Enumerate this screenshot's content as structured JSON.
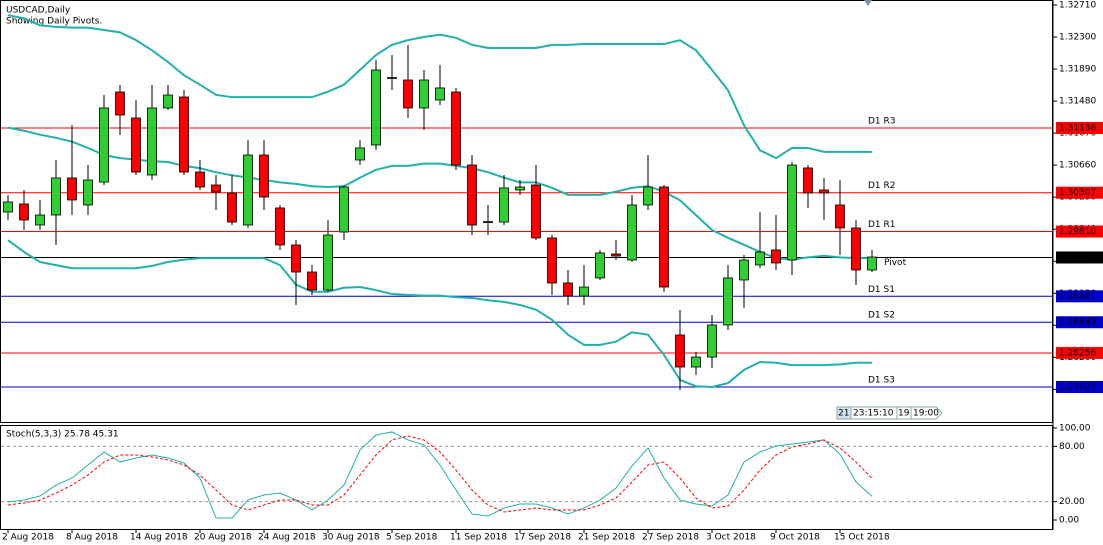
{
  "chart_data": [
    {
      "type": "candlestick",
      "title": "USDCAD,Daily",
      "subtitle": "Showing Daily Pivots.",
      "categories": [
        "2 Aug 2018",
        null,
        null,
        null,
        "8 Aug 2018",
        null,
        null,
        null,
        "14 Aug 2018",
        null,
        null,
        null,
        "20 Aug 2018",
        null,
        null,
        null,
        "24 Aug 2018",
        null,
        null,
        null,
        "30 Aug 2018",
        null,
        null,
        null,
        "5 Sep 2018",
        null,
        null,
        null,
        "11 Sep 2018",
        null,
        null,
        null,
        "17 Sep 2018",
        null,
        null,
        null,
        "21 Sep 2018",
        null,
        null,
        null,
        "27 Sep 2018",
        null,
        null,
        null,
        "3 Oct 2018",
        null,
        null,
        null,
        "9 Oct 2018",
        null,
        null,
        null,
        "15 Oct 2018",
        null,
        null
      ],
      "open": [
        1.3006,
        1.30163,
        1.29894,
        1.30022,
        1.30496,
        1.3015,
        1.30444,
        1.31596,
        1.31264,
        1.30534,
        1.31392,
        1.31532,
        1.30572,
        1.30406,
        1.30304,
        1.29894,
        1.3079,
        1.30112,
        1.29638,
        1.29292,
        1.29062,
        1.29804,
        1.30726,
        1.30918,
        1.31776,
        1.3175,
        1.31392,
        1.31494,
        1.31596,
        1.30662,
        1.29932,
        1.29932,
        1.30342,
        1.30406,
        1.29728,
        1.29152,
        1.28985,
        1.29216,
        1.29523,
        1.29446,
        1.3015,
        1.3038,
        1.28486,
        1.28076,
        1.28204,
        1.28614,
        1.2919,
        1.29382,
        1.29574,
        1.29446,
        1.30624,
        1.30342,
        1.3015,
        1.29856,
        1.29318
      ],
      "high": [
        1.30278,
        1.30342,
        1.30214,
        1.30726,
        1.31174,
        1.30662,
        1.31558,
        1.31686,
        1.31494,
        1.31686,
        1.31686,
        1.31622,
        1.30726,
        1.30534,
        1.30534,
        1.30982,
        1.30982,
        1.3015,
        1.29702,
        1.29382,
        1.29958,
        1.30406,
        1.30982,
        1.32006,
        1.3207,
        1.32198,
        1.31878,
        1.31942,
        1.31648,
        1.3079,
        1.3015,
        1.30534,
        1.3047,
        1.30662,
        1.29766,
        1.29318,
        1.29382,
        1.29574,
        1.29702,
        1.30278,
        1.3079,
        1.30406,
        1.28806,
        1.28268,
        1.28742,
        1.29382,
        1.2951,
        1.3006,
        1.30022,
        1.307,
        1.30662,
        1.30496,
        1.3047,
        1.29958,
        1.29574
      ],
      "low": [
        1.29958,
        1.2983,
        1.2983,
        1.29638,
        1.30022,
        1.30022,
        1.30406,
        1.31046,
        1.30534,
        1.3047,
        1.31366,
        1.30534,
        1.30342,
        1.30086,
        1.29894,
        1.29856,
        1.30086,
        1.29574,
        1.2887,
        1.28998,
        1.29036,
        1.29702,
        1.30662,
        1.30854,
        1.31622,
        1.31264,
        1.3111,
        1.3143,
        1.30598,
        1.29766,
        1.29766,
        1.29894,
        1.30278,
        1.29702,
        1.28998,
        1.2887,
        1.2887,
        1.2919,
        1.29446,
        1.2942,
        1.30086,
        1.29036,
        1.27782,
        1.27974,
        1.28064,
        1.2855,
        1.28832,
        1.29344,
        1.29318,
        1.29254,
        1.30112,
        1.29958,
        1.2951,
        1.29126,
        1.29292
      ],
      "close": [
        1.30188,
        1.29958,
        1.30022,
        1.30496,
        1.30214,
        1.3047,
        1.31392,
        1.31302,
        1.30572,
        1.31392,
        1.31558,
        1.30572,
        1.3038,
        1.30316,
        1.29932,
        1.3079,
        1.30252,
        1.29638,
        1.29292,
        1.29062,
        1.29766,
        1.3038,
        1.3088,
        1.31878,
        1.31782,
        1.31392,
        1.3175,
        1.31648,
        1.30662,
        1.29894,
        1.29938,
        1.30368,
        1.3038,
        1.29728,
        1.29152,
        1.28985,
        1.291,
        1.29536,
        1.29497,
        1.3015,
        1.3038,
        1.291,
        1.28076,
        1.28204,
        1.28614,
        1.29216,
        1.29446,
        1.29548,
        1.29408,
        1.30662,
        1.30304,
        1.30304,
        1.29856,
        1.29318,
        1.29484
      ],
      "up_color": "#32cd32",
      "down_color": "#ff0000",
      "bands": [
        {
          "color": "#20b2aa",
          "values": [
            1.3258,
            1.3254,
            1.3245,
            1.3243,
            1.3242,
            1.3242,
            1.3239,
            1.3236,
            1.3226,
            1.3213,
            1.3198,
            1.3181,
            1.3169,
            1.3156,
            1.3153,
            1.3153,
            1.3153,
            1.3153,
            1.3153,
            1.3153,
            1.316,
            1.3169,
            1.3188,
            1.3207,
            1.322,
            1.3226,
            1.323,
            1.3233,
            1.3229,
            1.322,
            1.3216,
            1.3216,
            1.3216,
            1.3216,
            1.322,
            1.322,
            1.3221,
            1.3221,
            1.3221,
            1.3221,
            1.3221,
            1.3221,
            1.3226,
            1.3213,
            1.3188,
            1.3162,
            1.3117,
            1.3085,
            1.3075,
            1.3088,
            1.3088,
            1.3083,
            1.3083,
            1.3083,
            1.3083
          ]
        },
        {
          "color": "#20b2aa",
          "values": [
            1.3114,
            1.311,
            1.3105,
            1.3101,
            1.3096,
            1.3088,
            1.3079,
            1.3075,
            1.3073,
            1.3071,
            1.307,
            1.3065,
            1.3062,
            1.3057,
            1.3053,
            1.305,
            1.3047,
            1.3044,
            1.3042,
            1.3039,
            1.3038,
            1.3039,
            1.305,
            1.306,
            1.3065,
            1.3065,
            1.3068,
            1.3068,
            1.3065,
            1.3062,
            1.3057,
            1.305,
            1.3044,
            1.3044,
            1.3037,
            1.3028,
            1.3028,
            1.3028,
            1.3032,
            1.3037,
            1.3039,
            1.3032,
            1.3021,
            1.3002,
            1.2983,
            1.2973,
            1.2964,
            1.2955,
            1.2947,
            1.2945,
            1.2948,
            1.295,
            1.2948,
            1.2947,
            1.2947
          ]
        },
        {
          "color": "#20b2aa",
          "values": [
            1.297,
            1.2955,
            1.2942,
            1.2938,
            1.2934,
            1.2934,
            1.2934,
            1.2934,
            1.2934,
            1.2937,
            1.2942,
            1.2945,
            1.2947,
            1.2947,
            1.2947,
            1.2947,
            1.2947,
            1.2938,
            1.2913,
            1.2904,
            1.2904,
            1.2909,
            1.291,
            1.2906,
            1.2901,
            1.29,
            1.2899,
            1.2899,
            1.2897,
            1.2896,
            1.2893,
            1.2891,
            1.2887,
            1.2881,
            1.2868,
            1.2849,
            1.2836,
            1.2836,
            1.284,
            1.2852,
            1.2849,
            1.2823,
            1.2791,
            1.2783,
            1.2782,
            1.2787,
            1.2804,
            1.2814,
            1.2813,
            1.281,
            1.281,
            1.281,
            1.2811,
            1.2813,
            1.2813
          ]
        }
      ],
      "levels": [
        {
          "name": "D1 R3",
          "price": 1.31136,
          "color": "#ff0000"
        },
        {
          "name": "D1 R2",
          "price": 1.30307,
          "color": "#ff0000"
        },
        {
          "name": "D1 R1",
          "price": {
            "value": 1.2981,
            "label": "1.29810"
          },
          "color": "#ff0000"
        },
        {
          "name": "Pivot",
          "price": 1.29478,
          "color": "#000000"
        },
        {
          "name": "D1 S1",
          "price": 1.28981,
          "color": "#0000cd"
        },
        {
          "name": "D1 S2",
          "price": 1.28649,
          "color": "#0000cd"
        },
        {
          "price": 1.28256,
          "color": "#ff0000"
        },
        {
          "name": "D1 S3",
          "price": {
            "value": 1.2782,
            "label": "1.27820"
          },
          "color": "#0000cd"
        }
      ],
      "ylim": [
        1.27372,
        1.32774
      ],
      "yticks": [
        {
          "value": 1.3271,
          "label": "1.32710"
        },
        {
          "value": 1.323,
          "label": "1.32300"
        },
        {
          "value": 1.3189,
          "label": "1.31890"
        },
        {
          "value": 1.3148,
          "label": "1.31480"
        },
        {
          "value": 1.3107,
          "label": "1.31070"
        },
        {
          "value": 1.3066,
          "label": "1.30660"
        },
        {
          "value": 1.3025,
          "label": "1.30250"
        },
        {
          "value": 1.2984,
          "label": "1.29840"
        },
        {
          "value": 1.2943,
          "label": "1.29430"
        },
        {
          "value": 1.2902,
          "label": "1.29020"
        },
        {
          "value": 1.2861,
          "label": "1.28610"
        },
        {
          "value": 1.282,
          "label": "1.28200"
        },
        {
          "value": 1.2779,
          "label": "1.27790"
        }
      ]
    },
    {
      "type": "line",
      "title": "Stoch(5,3,3) 25.78 45.31",
      "series": [
        {
          "color": "#20b2aa",
          "values": [
            19.6,
            21.7,
            26.1,
            38.0,
            45.7,
            59.8,
            73.9,
            63.0,
            67.4,
            70.7,
            67.4,
            62.0,
            45.7,
            2.2,
            2.2,
            21.7,
            27.2,
            29.3,
            21.7,
            10.9,
            21.7,
            38.0,
            76.1,
            92.4,
            95.7,
            87.0,
            81.5,
            59.8,
            32.6,
            6.5,
            4.3,
            13.0,
            17.4,
            17.4,
            13.0,
            6.5,
            13.0,
            21.7,
            34.8,
            58.7,
            78.3,
            45.7,
            21.7,
            17.4,
            15.2,
            27.2,
            63.0,
            73.9,
            80.4,
            82.6,
            84.8,
            87.0,
            71.7,
            41.3,
            25.78
          ]
        },
        {
          "color": "#ff0000",
          "dash": true,
          "values": [
            16.3,
            18.5,
            21.7,
            29.3,
            38.0,
            48.9,
            63.0,
            70.7,
            70.7,
            68.5,
            65.2,
            59.8,
            48.9,
            32.6,
            16.3,
            10.9,
            16.3,
            21.7,
            21.7,
            16.3,
            16.3,
            27.2,
            48.9,
            70.7,
            87.0,
            91.3,
            87.0,
            73.9,
            54.3,
            32.6,
            16.3,
            8.7,
            10.9,
            13.0,
            10.9,
            10.9,
            10.9,
            16.3,
            23.9,
            41.3,
            59.8,
            63.0,
            45.7,
            23.9,
            13.0,
            15.2,
            32.6,
            54.3,
            70.7,
            79.3,
            82.6,
            87.0,
            78.3,
            63.0,
            45.31
          ]
        }
      ],
      "ylim": [
        0,
        100
      ],
      "yticks": [
        {
          "value": 100,
          "label": "100.00"
        },
        {
          "value": 80,
          "label": "80.00"
        },
        {
          "value": 20,
          "label": "20.00"
        },
        {
          "value": 0,
          "label": "0.00"
        }
      ]
    }
  ],
  "widget": [
    "21:",
    "23:15:10",
    "19:",
    "19:00"
  ]
}
